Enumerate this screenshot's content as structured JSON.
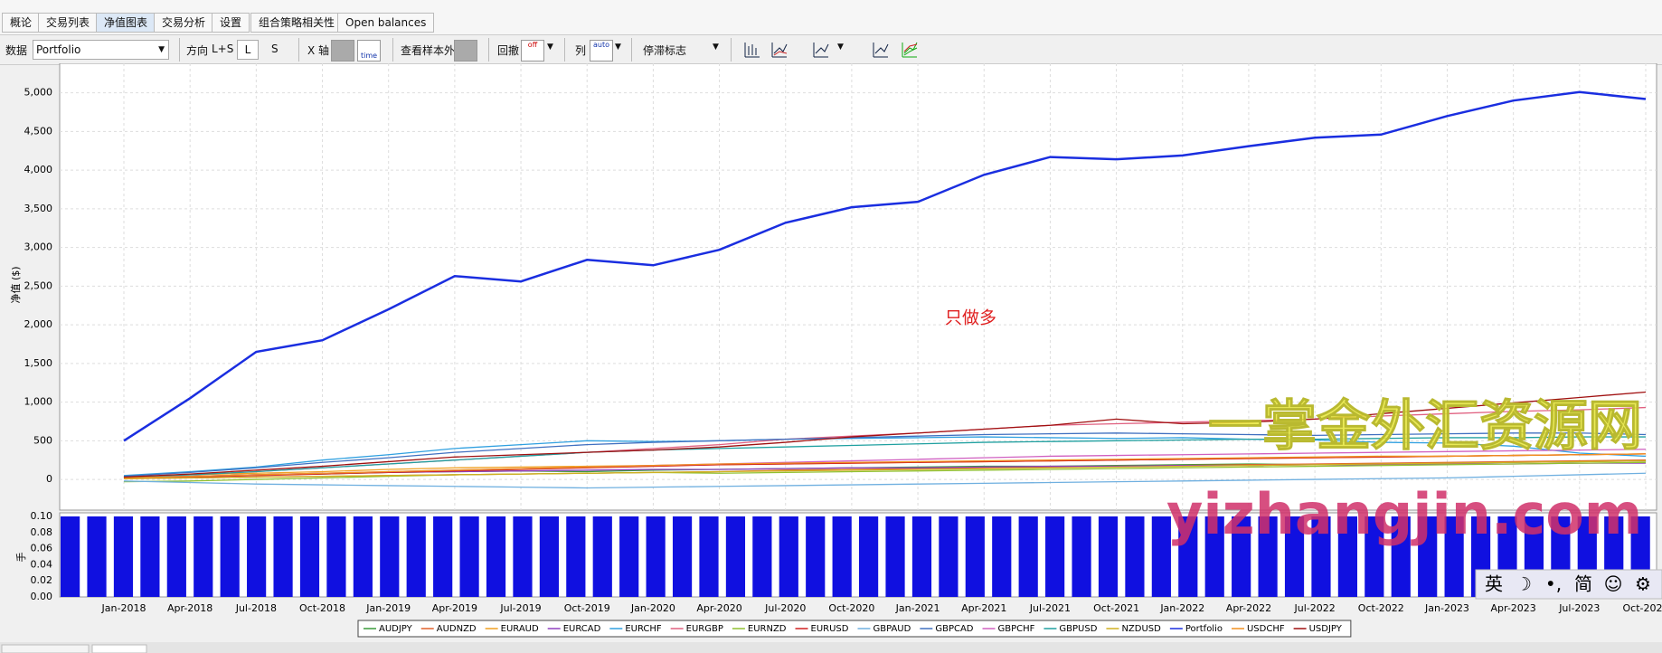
{
  "ui": {
    "tabs": [
      "概论",
      "交易列表",
      "净值图表",
      "交易分析",
      "设置",
      "组合策略相关性",
      "Open balances"
    ],
    "toolbar": {
      "data_label": "数据",
      "data_value": "Portfolio",
      "direction_label": "方向",
      "direction_value": "L+S",
      "long": "L",
      "short": "S",
      "x_axis": "X 轴",
      "x_icon": "time",
      "oos": "查看样本外",
      "drawdown": "回撤",
      "drawdown_icon": "off",
      "columns": "列",
      "columns_icon": "auto",
      "stagnation": "停滞标志"
    },
    "ime": [
      "英",
      "☽",
      "•,",
      "简",
      "☺",
      "⚙"
    ]
  },
  "overlay": {
    "note": "只做多",
    "watermark_cn": "一掌金外汇资源网",
    "watermark_url": "yizhangjin.com"
  },
  "chart_data": [
    {
      "type": "line",
      "ylabel": "净值 ($)",
      "ylim": [
        -350,
        5300
      ],
      "yticks": [
        0,
        500,
        {
          "value": 1000,
          "label": "1,000"
        },
        {
          "value": 1500,
          "label": "1,500"
        },
        {
          "value": 2000,
          "label": "2,000"
        },
        {
          "value": 2500,
          "label": "2,500"
        },
        {
          "value": 3000,
          "label": "3,000"
        },
        {
          "value": 3500,
          "label": "3,500"
        },
        {
          "value": 4000,
          "label": "4,000"
        },
        {
          "value": 4500,
          "label": "4,500"
        },
        {
          "value": 5000,
          "label": "5,000"
        }
      ],
      "grid": true,
      "categories": [
        "Jan-2018",
        "Apr-2018",
        "Jul-2018",
        "Oct-2018",
        "Jan-2019",
        "Apr-2019",
        "Jul-2019",
        "Oct-2019",
        "Jan-2020",
        "Apr-2020",
        "Jul-2020",
        "Oct-2020",
        "Jan-2021",
        "Apr-2021",
        "Jul-2021",
        "Oct-2021",
        "Jan-2022",
        "Apr-2022",
        "Jul-2022",
        "Oct-2022",
        "Jan-2023",
        "Apr-2023",
        "Jul-2023",
        "Oct-2023"
      ],
      "series": [
        {
          "name": "AUDJPY",
          "color": "#3a9a3a",
          "values": [
            20,
            40,
            60,
            70,
            90,
            100,
            110,
            100,
            120,
            130,
            140,
            150,
            160,
            170,
            170,
            180,
            190,
            200,
            190,
            200,
            210,
            220,
            230,
            240
          ]
        },
        {
          "name": "AUDNZD",
          "color": "#e0602a",
          "values": [
            10,
            20,
            30,
            40,
            50,
            60,
            70,
            80,
            90,
            100,
            120,
            130,
            140,
            150,
            160,
            170,
            180,
            190,
            200,
            210,
            220,
            230,
            240,
            250
          ]
        },
        {
          "name": "EURAUD",
          "color": "#f0a020",
          "values": [
            30,
            60,
            80,
            100,
            130,
            150,
            160,
            170,
            180,
            190,
            200,
            210,
            220,
            230,
            240,
            250,
            260,
            270,
            280,
            290,
            300,
            310,
            320,
            330
          ]
        },
        {
          "name": "EURCAD",
          "color": "#9040c0",
          "values": [
            20,
            40,
            60,
            80,
            90,
            100,
            110,
            120,
            130,
            130,
            140,
            150,
            150,
            160,
            170,
            170,
            180,
            180,
            190,
            190,
            200,
            200,
            210,
            210
          ]
        },
        {
          "name": "EURCHF",
          "color": "#30a0e0",
          "values": [
            50,
            100,
            160,
            250,
            320,
            400,
            450,
            500,
            490,
            500,
            520,
            530,
            540,
            550,
            540,
            530,
            540,
            520,
            510,
            480,
            470,
            430,
            340,
            300
          ]
        },
        {
          "name": "EURGBP",
          "color": "#e06080",
          "values": [
            30,
            60,
            100,
            150,
            200,
            250,
            300,
            350,
            400,
            450,
            520,
            560,
            600,
            650,
            700,
            720,
            740,
            760,
            780,
            820,
            850,
            880,
            900,
            930
          ]
        },
        {
          "name": "EURNZD",
          "color": "#90c030",
          "values": [
            -30,
            -20,
            0,
            20,
            40,
            60,
            70,
            80,
            90,
            80,
            90,
            100,
            110,
            120,
            130,
            140,
            150,
            160,
            170,
            180,
            190,
            200,
            210,
            220
          ]
        },
        {
          "name": "EURUSD",
          "color": "#d02020",
          "values": [
            10,
            30,
            50,
            70,
            90,
            110,
            130,
            150,
            170,
            190,
            200,
            210,
            220,
            230,
            240,
            250,
            260,
            270,
            280,
            290,
            300,
            310,
            320,
            330
          ]
        },
        {
          "name": "GBPAUD",
          "color": "#70b0e0",
          "values": [
            -20,
            -40,
            -60,
            -70,
            -80,
            -90,
            -100,
            -110,
            -100,
            -90,
            -80,
            -70,
            -60,
            -50,
            -40,
            -30,
            -20,
            -10,
            0,
            10,
            20,
            40,
            60,
            80
          ]
        },
        {
          "name": "GBPCAD",
          "color": "#4070c0",
          "values": [
            40,
            90,
            150,
            220,
            280,
            350,
            400,
            450,
            480,
            500,
            520,
            540,
            560,
            580,
            590,
            600,
            590,
            580,
            570,
            580,
            590,
            600,
            600,
            580
          ]
        },
        {
          "name": "GBPCHF",
          "color": "#d060c0",
          "values": [
            20,
            40,
            60,
            80,
            100,
            120,
            140,
            160,
            180,
            200,
            220,
            240,
            260,
            280,
            300,
            310,
            320,
            330,
            340,
            350,
            360,
            370,
            380,
            390
          ]
        },
        {
          "name": "GBPUSD",
          "color": "#20a0a0",
          "values": [
            30,
            60,
            100,
            150,
            200,
            250,
            300,
            350,
            380,
            400,
            420,
            440,
            460,
            480,
            490,
            500,
            510,
            520,
            520,
            530,
            540,
            540,
            550,
            550
          ]
        },
        {
          "name": "NZDUSD",
          "color": "#d0b020",
          "values": [
            10,
            20,
            30,
            40,
            50,
            60,
            70,
            80,
            90,
            100,
            110,
            120,
            130,
            140,
            150,
            160,
            170,
            180,
            190,
            200,
            210,
            220,
            230,
            240
          ]
        },
        {
          "name": "Portfolio",
          "color": "#1a2ee0",
          "values": [
            500,
            1050,
            1650,
            1800,
            2200,
            2630,
            2560,
            2840,
            2770,
            2970,
            3320,
            3520,
            3590,
            3940,
            4170,
            4140,
            4190,
            4310,
            4420,
            4460,
            4700,
            4900,
            5010,
            4920
          ]
        },
        {
          "name": "USDCHF",
          "color": "#f09020",
          "values": [
            20,
            40,
            60,
            80,
            100,
            120,
            140,
            160,
            180,
            200,
            210,
            220,
            230,
            240,
            250,
            260,
            270,
            280,
            290,
            300,
            300,
            310,
            320,
            330
          ]
        },
        {
          "name": "USDJPY",
          "color": "#a01010",
          "values": [
            30,
            70,
            120,
            170,
            230,
            290,
            320,
            350,
            380,
            420,
            480,
            550,
            600,
            650,
            700,
            780,
            720,
            740,
            780,
            850,
            920,
            990,
            1060,
            1130
          ]
        }
      ]
    },
    {
      "type": "bar",
      "ylabel": "手",
      "color": "#1010e0",
      "ylim": [
        0,
        0.1
      ],
      "yticks": [
        {
          "value": 0,
          "label": "0.00"
        },
        {
          "value": 0.02,
          "label": "0.02"
        },
        {
          "value": 0.04,
          "label": "0.04"
        },
        {
          "value": 0.06,
          "label": "0.06"
        },
        {
          "value": 0.08,
          "label": "0.08"
        },
        {
          "value": 0.1,
          "label": "0.10"
        }
      ],
      "values": [
        0.1,
        0.1,
        0.1,
        0.1,
        0.1,
        0.1,
        0.1,
        0.1,
        0.1,
        0.1,
        0.1,
        0.1,
        0.1,
        0.1,
        0.1,
        0.1,
        0.1,
        0.1,
        0.1,
        0.1,
        0.1,
        0.1,
        0.1,
        0.1,
        0.1,
        0.1,
        0.1,
        0.1,
        0.1,
        0.1,
        0.1,
        0.1,
        0.1,
        0.1,
        0.1,
        0.1,
        0.1,
        0.1,
        0.1,
        0.1,
        0.1,
        0.1,
        0.1,
        0.1,
        0.1,
        0.1,
        0.1,
        0.1,
        0.1,
        0.1,
        0.1,
        0.1,
        0.1,
        0.1,
        0.1,
        0.1,
        0.1,
        0.1,
        0.1,
        0.1
      ]
    }
  ]
}
